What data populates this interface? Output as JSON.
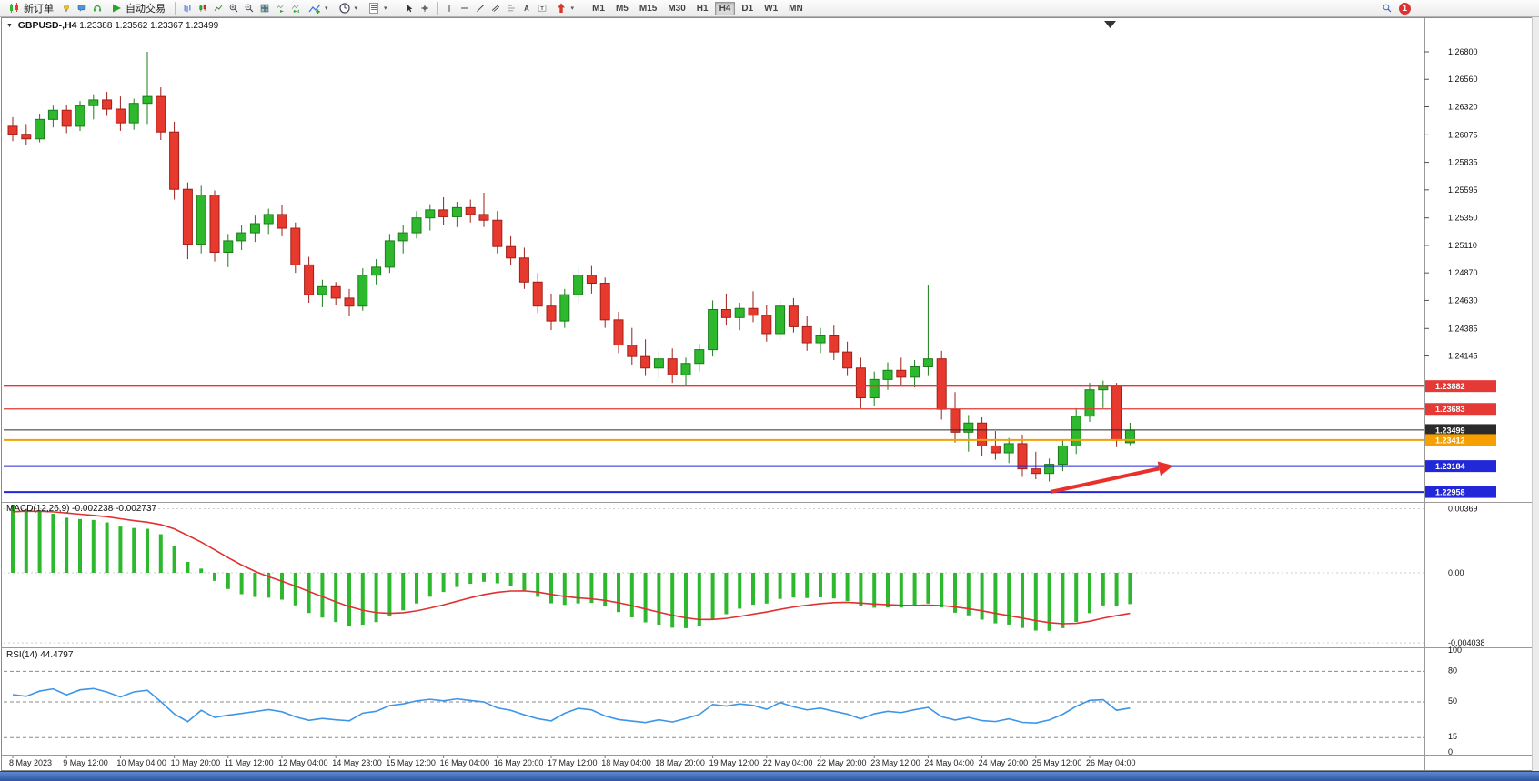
{
  "toolbar": {
    "new_order_label": "新订单",
    "autotrading_label": "自动交易",
    "timeframes": [
      "M1",
      "M5",
      "M15",
      "M30",
      "H1",
      "H4",
      "D1",
      "W1",
      "MN"
    ],
    "active_timeframe": "H4",
    "notification_count": "1",
    "icon_names": [
      "new-order-icon",
      "lightbulb-icon",
      "chat-icon",
      "headset-icon",
      "autotrading-play-icon",
      "bar-chart-icon",
      "candlestick-chart-icon",
      "line-chart-icon",
      "zoom-in-icon",
      "zoom-out-icon",
      "tile-windows-icon",
      "auto-scroll-icon",
      "chart-shift-icon",
      "indicators-icon",
      "periods-clock-icon",
      "templates-icon",
      "cursor-icon",
      "crosshair-icon",
      "vertical-line-icon",
      "horizontal-line-icon",
      "trendline-icon",
      "channel-icon",
      "fibonacci-icon",
      "text-icon",
      "text-label-icon",
      "shapes-arrow-icon",
      "search-icon"
    ]
  },
  "chart_header": {
    "symbol": "GBPUSD-,H4",
    "ohlc": "1.23388 1.23562 1.23367 1.23499"
  },
  "indicators": {
    "macd": {
      "label": "MACD(12,26,9)",
      "values": "-0.002238 -0.002737",
      "scale": [
        "0.00369",
        "0.00",
        "-0.004038"
      ],
      "histogram_color": "#2db82d",
      "signal_color": "#e03131"
    },
    "rsi": {
      "label": "RSI(14)",
      "value": "44.4797",
      "levels": [
        "100",
        "80",
        "50",
        "15",
        "0"
      ],
      "line_color": "#3d95e8"
    }
  },
  "price_axis": {
    "ticks": [
      "1.26800",
      "1.26560",
      "1.26320",
      "1.26075",
      "1.25835",
      "1.25595",
      "1.25350",
      "1.25110",
      "1.24870",
      "1.24630",
      "1.24385",
      "1.24145"
    ],
    "levels": [
      {
        "name": "resistance-line-1",
        "label": "1.23882",
        "price": 1.23882,
        "color": "#e53935",
        "width": 1.3,
        "interactable": true
      },
      {
        "name": "resistance-line-2",
        "label": "1.23683",
        "price": 1.23683,
        "color": "#e53935",
        "width": 1.3,
        "interactable": true
      },
      {
        "name": "bid-price-line",
        "label": "1.23499",
        "price": 1.23499,
        "color": "#2b2b2b",
        "width": 1,
        "interactable": false
      },
      {
        "name": "order-level-line",
        "label": "1.23412",
        "price": 1.23412,
        "color": "#f59f00",
        "width": 2,
        "interactable": true
      },
      {
        "name": "support-line-1",
        "label": "1.23184",
        "price": 1.23184,
        "color": "#2228d8",
        "width": 2,
        "interactable": true
      },
      {
        "name": "support-line-2",
        "label": "1.22958",
        "price": 1.22958,
        "color": "#2228d8",
        "width": 2,
        "interactable": true
      }
    ]
  },
  "chart_data": {
    "type": "candlestick",
    "symbol": "GBPUSD",
    "period": "H4",
    "price_range": [
      1.2289,
      1.2708
    ],
    "colors": {
      "up": "#2db82d",
      "up_dark": "#1a7d1a",
      "down": "#e8392e",
      "down_dark": "#9e2018"
    },
    "x_labels": [
      "8 May 2023",
      "9 May 12:00",
      "10 May 04:00",
      "10 May 20:00",
      "11 May 12:00",
      "12 May 04:00",
      "14 May 23:00",
      "15 May 12:00",
      "16 May 04:00",
      "16 May 20:00",
      "17 May 12:00",
      "18 May 04:00",
      "18 May 20:00",
      "19 May 12:00",
      "22 May 04:00",
      "22 May 20:00",
      "23 May 12:00",
      "24 May 04:00",
      "24 May 20:00",
      "25 May 12:00",
      "26 May 04:00"
    ],
    "candles": [
      [
        1.2615,
        1.2623,
        1.2602,
        1.2608
      ],
      [
        1.2608,
        1.2617,
        1.2599,
        1.2604
      ],
      [
        1.2604,
        1.2626,
        1.2601,
        1.2621
      ],
      [
        1.2621,
        1.2633,
        1.2614,
        1.2629
      ],
      [
        1.2629,
        1.2634,
        1.2609,
        1.2615
      ],
      [
        1.2615,
        1.2637,
        1.2611,
        1.2633
      ],
      [
        1.2633,
        1.2643,
        1.2621,
        1.2638
      ],
      [
        1.2638,
        1.2645,
        1.2624,
        1.263
      ],
      [
        1.263,
        1.2641,
        1.2611,
        1.2618
      ],
      [
        1.2618,
        1.2639,
        1.2612,
        1.2635
      ],
      [
        1.2635,
        1.268,
        1.2617,
        1.2641
      ],
      [
        1.2641,
        1.2649,
        1.2603,
        1.261
      ],
      [
        1.261,
        1.2619,
        1.2551,
        1.256
      ],
      [
        1.256,
        1.2566,
        1.2499,
        1.2512
      ],
      [
        1.2512,
        1.2563,
        1.2504,
        1.2555
      ],
      [
        1.2555,
        1.2559,
        1.2497,
        1.2505
      ],
      [
        1.2505,
        1.2521,
        1.2492,
        1.2515
      ],
      [
        1.2515,
        1.2529,
        1.2507,
        1.2522
      ],
      [
        1.2522,
        1.2537,
        1.2514,
        1.253
      ],
      [
        1.253,
        1.2543,
        1.2521,
        1.2538
      ],
      [
        1.2538,
        1.2546,
        1.2519,
        1.2526
      ],
      [
        1.2526,
        1.2531,
        1.2487,
        1.2494
      ],
      [
        1.2494,
        1.2501,
        1.2461,
        1.2468
      ],
      [
        1.2468,
        1.2481,
        1.2457,
        1.2475
      ],
      [
        1.2475,
        1.2479,
        1.2459,
        1.2465
      ],
      [
        1.2465,
        1.2473,
        1.2449,
        1.2458
      ],
      [
        1.2458,
        1.2491,
        1.2454,
        1.2485
      ],
      [
        1.2485,
        1.2499,
        1.2477,
        1.2492
      ],
      [
        1.2492,
        1.2521,
        1.2487,
        1.2515
      ],
      [
        1.2515,
        1.2529,
        1.2504,
        1.2522
      ],
      [
        1.2522,
        1.2541,
        1.2517,
        1.2535
      ],
      [
        1.2535,
        1.2547,
        1.2524,
        1.2542
      ],
      [
        1.2542,
        1.2553,
        1.2529,
        1.2536
      ],
      [
        1.2536,
        1.2549,
        1.2527,
        1.2544
      ],
      [
        1.2544,
        1.2551,
        1.2531,
        1.2538
      ],
      [
        1.2538,
        1.2557,
        1.2527,
        1.2533
      ],
      [
        1.2533,
        1.2541,
        1.2504,
        1.251
      ],
      [
        1.251,
        1.2519,
        1.2494,
        1.25
      ],
      [
        1.25,
        1.2509,
        1.2473,
        1.2479
      ],
      [
        1.2479,
        1.2487,
        1.2452,
        1.2458
      ],
      [
        1.2458,
        1.2469,
        1.2437,
        1.2445
      ],
      [
        1.2445,
        1.2473,
        1.2439,
        1.2468
      ],
      [
        1.2468,
        1.2491,
        1.2461,
        1.2485
      ],
      [
        1.2485,
        1.2493,
        1.2469,
        1.2478
      ],
      [
        1.2478,
        1.2483,
        1.2439,
        1.2446
      ],
      [
        1.2446,
        1.2453,
        1.2417,
        1.2424
      ],
      [
        1.2424,
        1.2439,
        1.2407,
        1.2414
      ],
      [
        1.2414,
        1.2429,
        1.2397,
        1.2404
      ],
      [
        1.2404,
        1.2419,
        1.2395,
        1.2412
      ],
      [
        1.2412,
        1.2421,
        1.2391,
        1.2398
      ],
      [
        1.2398,
        1.2413,
        1.2389,
        1.2408
      ],
      [
        1.2408,
        1.2425,
        1.2401,
        1.242
      ],
      [
        1.242,
        1.2463,
        1.2414,
        1.2455
      ],
      [
        1.2455,
        1.2469,
        1.2441,
        1.2448
      ],
      [
        1.2448,
        1.2461,
        1.2437,
        1.2456
      ],
      [
        1.2456,
        1.2471,
        1.2444,
        1.245
      ],
      [
        1.245,
        1.2459,
        1.2427,
        1.2434
      ],
      [
        1.2434,
        1.2463,
        1.2429,
        1.2458
      ],
      [
        1.2458,
        1.2465,
        1.2435,
        1.244
      ],
      [
        1.244,
        1.2449,
        1.2419,
        1.2426
      ],
      [
        1.2426,
        1.2439,
        1.2417,
        1.2432
      ],
      [
        1.2432,
        1.2441,
        1.2411,
        1.2418
      ],
      [
        1.2418,
        1.2427,
        1.2397,
        1.2404
      ],
      [
        1.2404,
        1.2413,
        1.2369,
        1.2378
      ],
      [
        1.2378,
        1.2401,
        1.2371,
        1.2394
      ],
      [
        1.2394,
        1.2409,
        1.2385,
        1.2402
      ],
      [
        1.2402,
        1.2413,
        1.2389,
        1.2396
      ],
      [
        1.2396,
        1.2411,
        1.2387,
        1.2405
      ],
      [
        1.2405,
        1.2476,
        1.2397,
        1.2412
      ],
      [
        1.2412,
        1.2419,
        1.2359,
        1.2368
      ],
      [
        1.2368,
        1.2383,
        1.2339,
        1.2348
      ],
      [
        1.2348,
        1.2363,
        1.2331,
        1.2356
      ],
      [
        1.2356,
        1.2361,
        1.2327,
        1.2336
      ],
      [
        1.2336,
        1.2349,
        1.2324,
        1.233
      ],
      [
        1.233,
        1.2343,
        1.2321,
        1.2338
      ],
      [
        1.2338,
        1.2346,
        1.2309,
        1.2316
      ],
      [
        1.2316,
        1.2331,
        1.2307,
        1.2312
      ],
      [
        1.2312,
        1.2325,
        1.2305,
        1.232
      ],
      [
        1.232,
        1.2341,
        1.2314,
        1.2336
      ],
      [
        1.2336,
        1.2369,
        1.2329,
        1.2362
      ],
      [
        1.2362,
        1.2391,
        1.2357,
        1.2385
      ],
      [
        1.2385,
        1.2393,
        1.2369,
        1.2388
      ],
      [
        1.2388,
        1.2391,
        1.2335,
        1.2341
      ],
      [
        1.23388,
        1.23562,
        1.23367,
        1.23499
      ]
    ],
    "arrow": {
      "from": [
        1155,
        541
      ],
      "to": [
        1290,
        512
      ],
      "color": "#e8312a"
    }
  }
}
